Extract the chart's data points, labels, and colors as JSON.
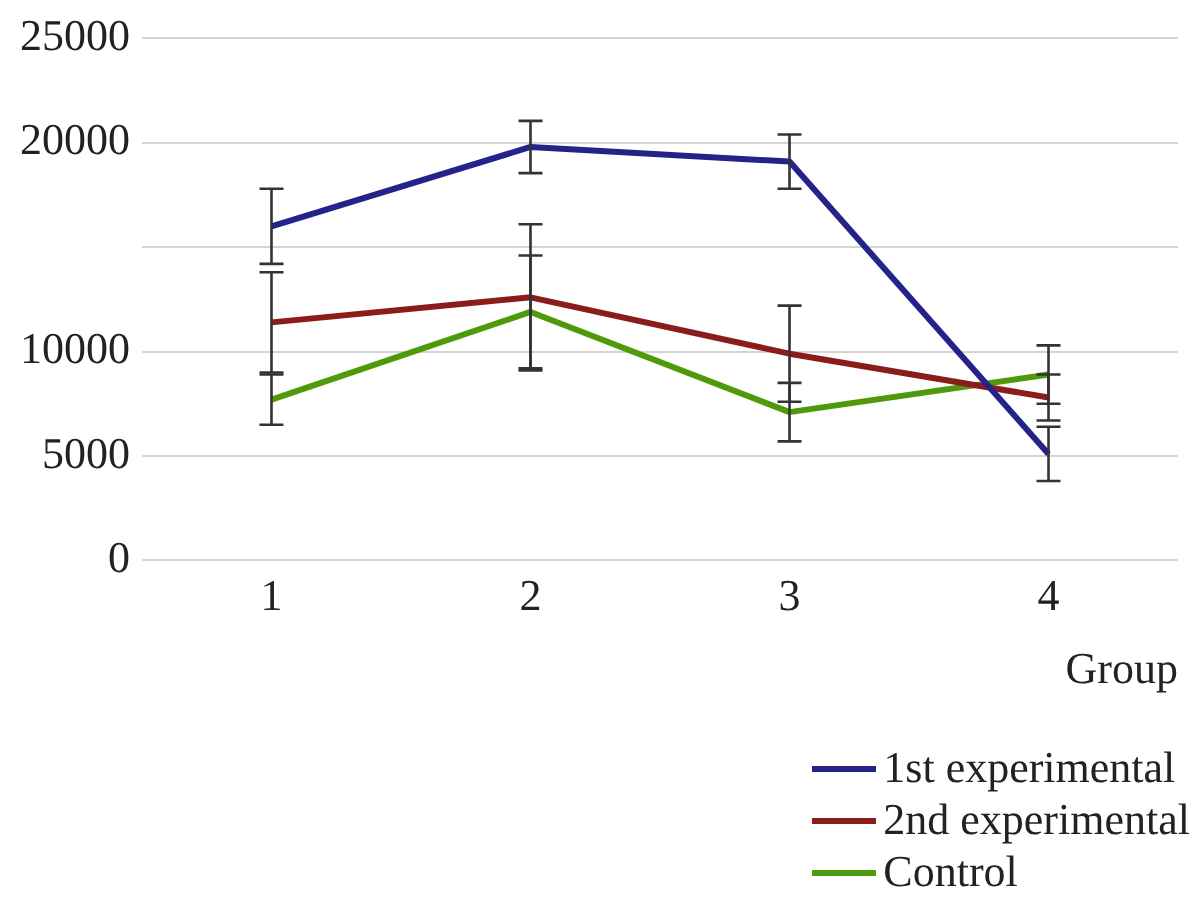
{
  "chart_data": {
    "type": "line",
    "xlabel": "Group",
    "categories": [
      "1",
      "2",
      "3",
      "4"
    ],
    "series": [
      {
        "name": "1st experimental",
        "color": "#23238a",
        "values": [
          16000,
          19800,
          19100,
          5100
        ],
        "errors": [
          1800,
          1250,
          1300,
          1300
        ]
      },
      {
        "name": "2nd experimental",
        "color": "#8a1c1c",
        "values": [
          11400,
          12600,
          9900,
          7800
        ],
        "errors": [
          2400,
          3500,
          2300,
          1100
        ]
      },
      {
        "name": "Control",
        "color": "#4f9a0a",
        "values": [
          7700,
          11900,
          7100,
          8900
        ],
        "errors": [
          1200,
          2700,
          1400,
          1400
        ]
      }
    ],
    "ylim": [
      0,
      25000
    ],
    "yticks": [
      0,
      5000,
      10000,
      {
        "value": 15000,
        "label": null
      },
      20000,
      25000
    ],
    "grid": "y",
    "legend": "bottom right",
    "marker": "none",
    "line_style": "solid"
  }
}
